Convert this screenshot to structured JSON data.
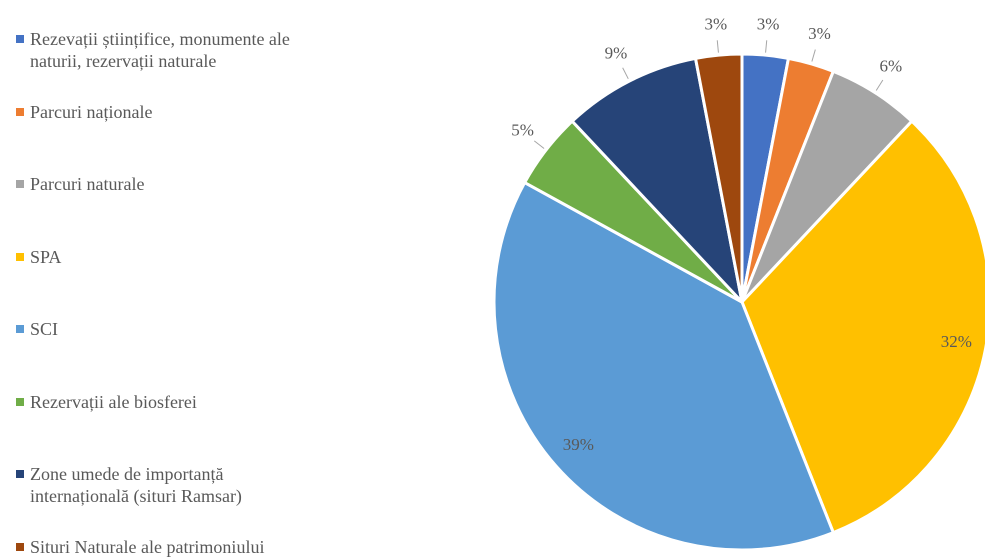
{
  "chart_data": {
    "type": "pie",
    "categories": [
      "Rezevații științifice, monumente ale naturii, rezervații naturale",
      "Parcuri naționale",
      "Parcuri naturale",
      "SPA",
      "SCI",
      "Rezervații ale biosferei",
      "Zone umede de importanță internațională (situri Ramsar)",
      "Situri Naturale ale patrimoniului natural"
    ],
    "values": [
      3,
      3,
      6,
      32,
      39,
      5,
      9,
      3
    ],
    "value_labels": [
      "3%",
      "3%",
      "6%",
      "32%",
      "39%",
      "5%",
      "9%",
      "3%"
    ],
    "colors": [
      "#4472c4",
      "#ed7d31",
      "#a5a5a5",
      "#ffc000",
      "#5b9bd5",
      "#70ad47",
      "#264478",
      "#9e480e"
    ],
    "legend": "left"
  }
}
